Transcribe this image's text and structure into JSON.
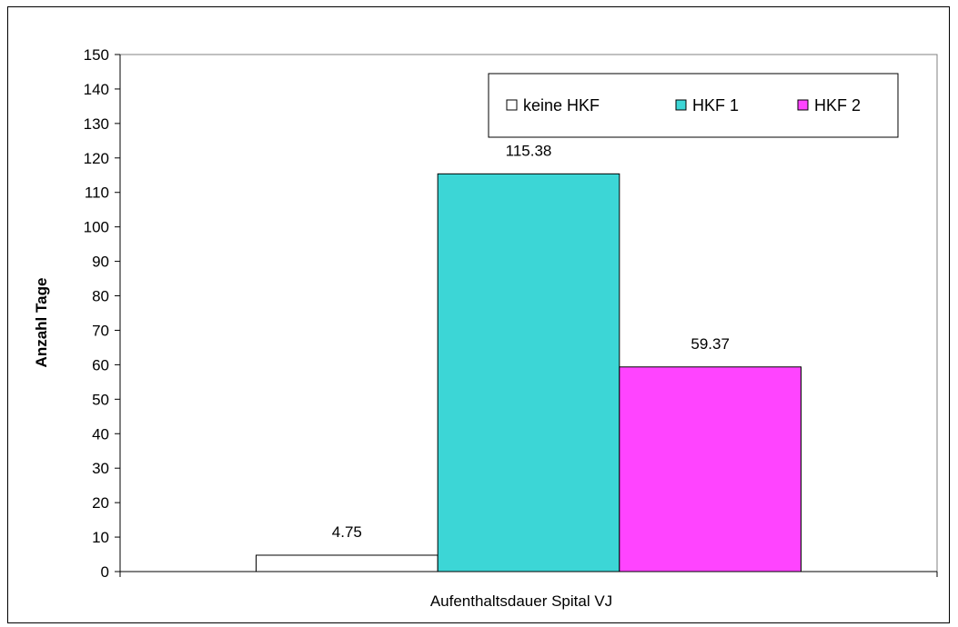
{
  "chart_data": {
    "type": "bar",
    "categories": [
      "Aufenthaltsdauer Spital VJ"
    ],
    "series": [
      {
        "name": "keine HKF",
        "values": [
          4.75
        ],
        "color": "#ffffff"
      },
      {
        "name": "HKF 1",
        "values": [
          115.38
        ],
        "color": "#3cd6d6"
      },
      {
        "name": "HKF 2",
        "values": [
          59.37
        ],
        "color": "#ff44ff"
      }
    ],
    "data_labels": [
      "4.75",
      "115.38",
      "59.37"
    ],
    "xlabel": "Aufenthaltsdauer Spital VJ",
    "ylabel": "Anzahl Tage",
    "ylim": [
      0,
      150
    ],
    "ytick_step": 10,
    "yticks": [
      "0",
      "10",
      "20",
      "30",
      "40",
      "50",
      "60",
      "70",
      "80",
      "90",
      "100",
      "110",
      "120",
      "130",
      "140",
      "150"
    ],
    "grid": false,
    "legend_position": "top-right"
  }
}
